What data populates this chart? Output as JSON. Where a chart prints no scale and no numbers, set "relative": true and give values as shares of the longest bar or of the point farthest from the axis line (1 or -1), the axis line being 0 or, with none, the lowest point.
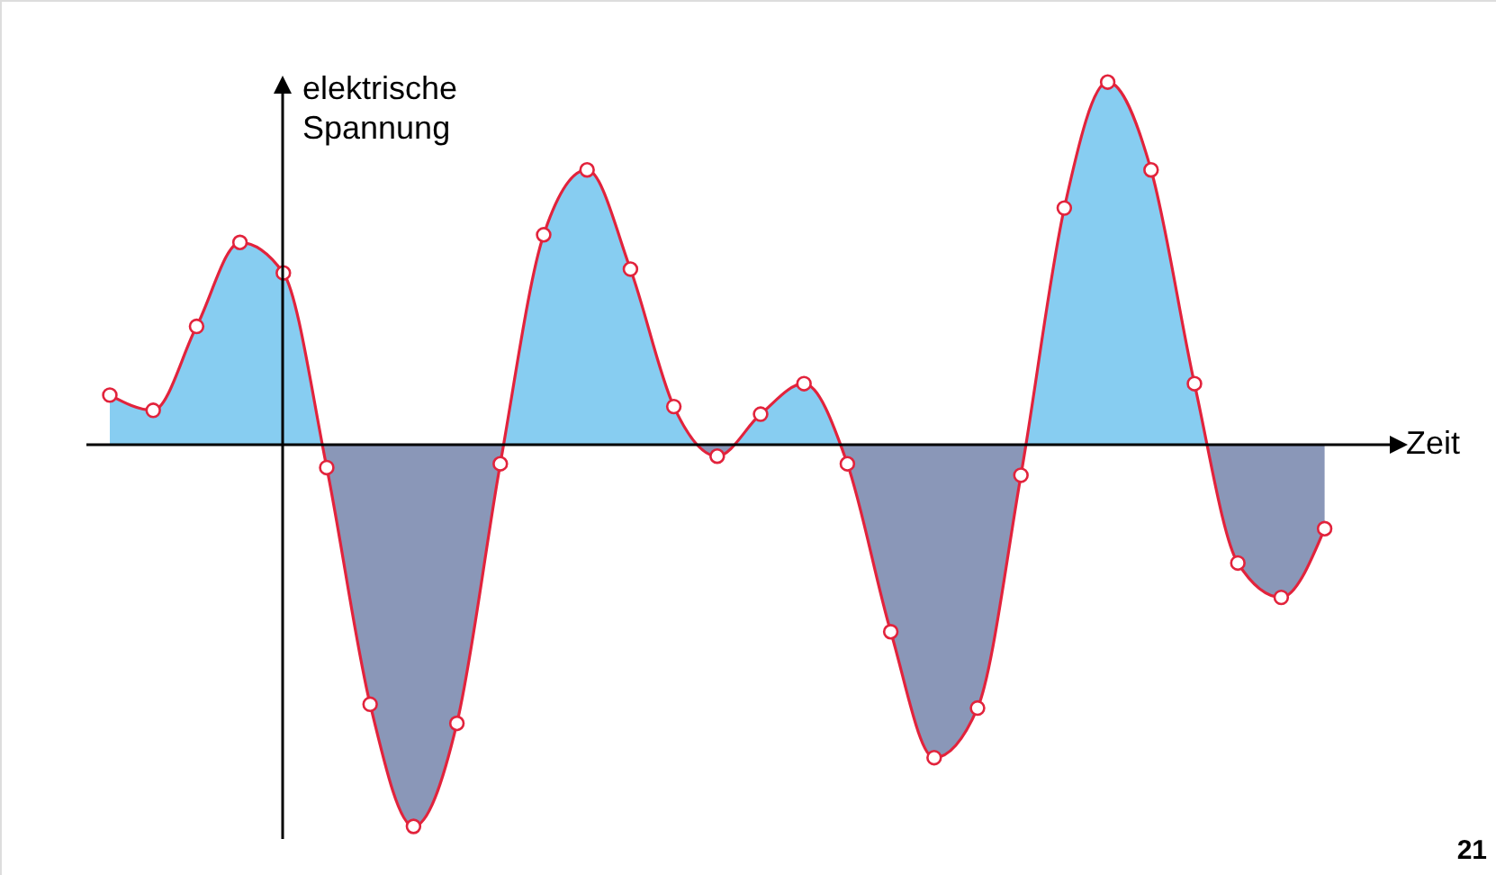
{
  "chart_data": {
    "type": "area",
    "relative": true,
    "xlabel": "Zeit",
    "ylabel": "elektrische Spannung",
    "annotations": [
      "21"
    ],
    "categories": [
      null,
      null,
      null,
      null,
      null,
      null,
      null,
      null,
      null,
      null,
      null,
      null,
      null,
      null,
      null,
      null,
      null,
      null,
      null,
      null,
      null,
      null,
      null,
      null,
      null,
      null,
      null,
      null,
      null
    ],
    "series": [
      {
        "color": "#e2233c",
        "colors": [
          "#87cdf1",
          "#87cdf1",
          "#87cdf1",
          "#87cdf1",
          "#87cdf1",
          "#8a97b8",
          "#8a97b8",
          "#8a97b8",
          "#8a97b8",
          "#8a97b8",
          "#87cdf1",
          "#87cdf1",
          "#87cdf1",
          "#87cdf1",
          "#8a97b8",
          "#87cdf1",
          "#87cdf1",
          "#8a97b8",
          "#8a97b8",
          "#8a97b8",
          "#8a97b8",
          "#8a97b8",
          "#87cdf1",
          "#87cdf1",
          "#87cdf1",
          "#87cdf1",
          "#8a97b8",
          "#8a97b8",
          "#8a97b8"
        ],
        "values": [
          0.13,
          0.09,
          0.31,
          0.53,
          0.45,
          -0.06,
          -0.68,
          -1,
          -0.73,
          -0.05,
          0.55,
          0.72,
          0.46,
          0.1,
          -0.03,
          0.08,
          0.16,
          -0.05,
          -0.49,
          -0.82,
          -0.69,
          -0.08,
          0.62,
          0.95,
          0.72,
          0.16,
          -0.31,
          -0.4,
          -0.22
        ]
      }
    ],
    "marker": "circle",
    "grid": false
  }
}
